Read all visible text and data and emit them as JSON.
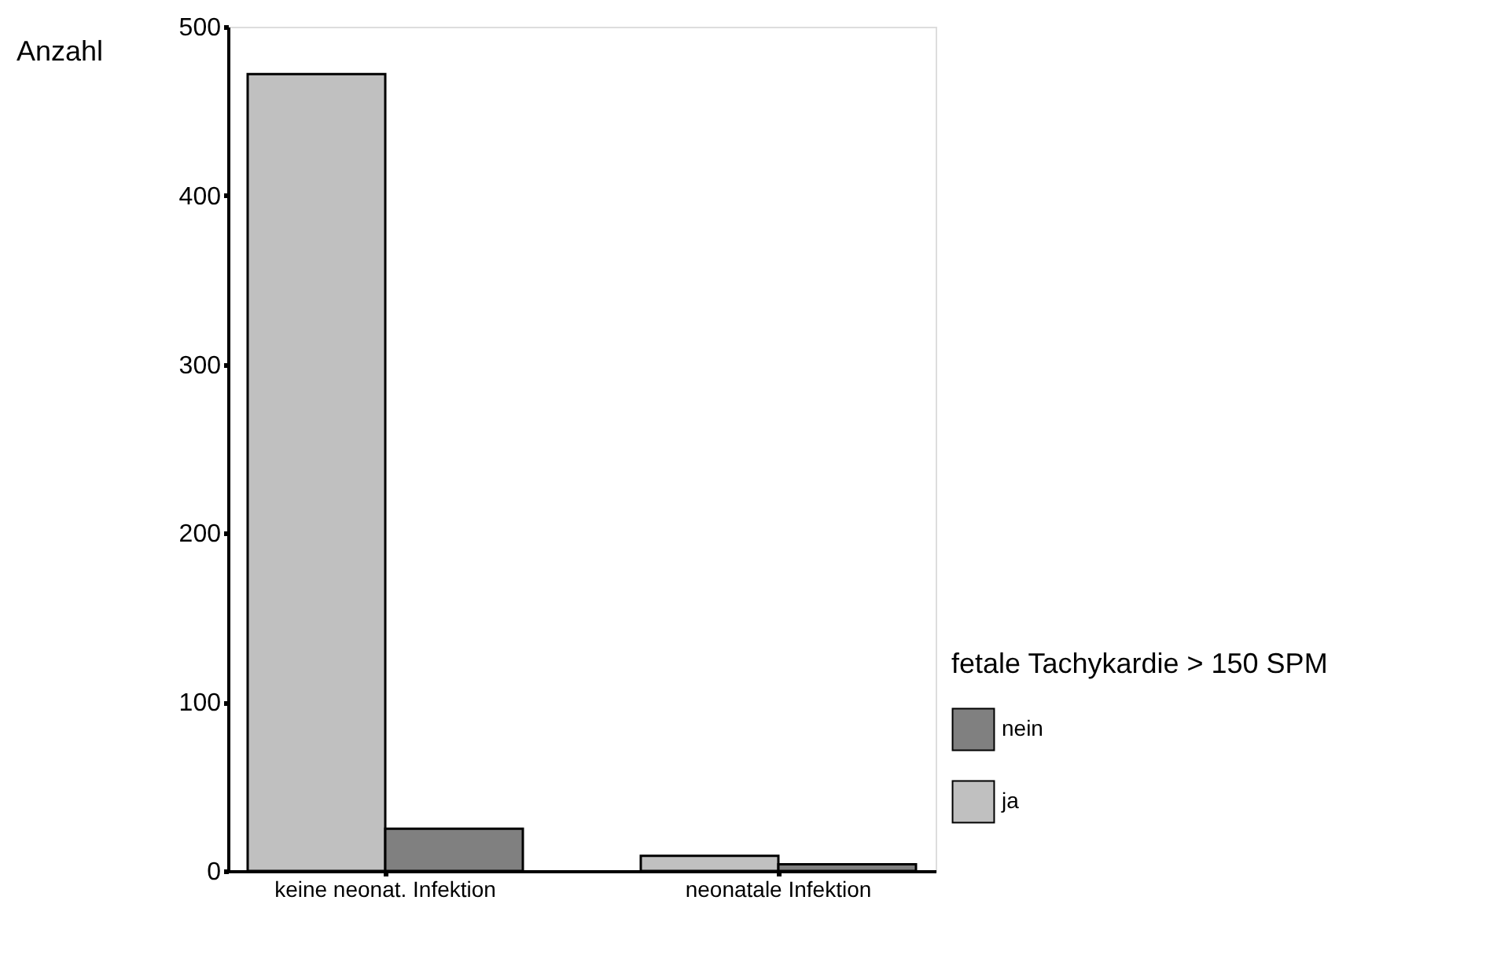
{
  "chart_data": {
    "type": "bar",
    "ylabel": "Anzahl",
    "legend_title": "fetale Tachykardie > 150 SPM",
    "categories": [
      "keine neonat. Infektion",
      "neonatale Infektion"
    ],
    "series": [
      {
        "name": "ja",
        "color": "#c0c0c0",
        "values": [
          472,
          9
        ]
      },
      {
        "name": "nein",
        "color": "#808080",
        "values": [
          25,
          4
        ]
      }
    ],
    "ylim": [
      0,
      500
    ],
    "yticks": [
      0,
      100,
      200,
      300,
      400,
      500
    ],
    "grid": false,
    "legend": "right"
  }
}
